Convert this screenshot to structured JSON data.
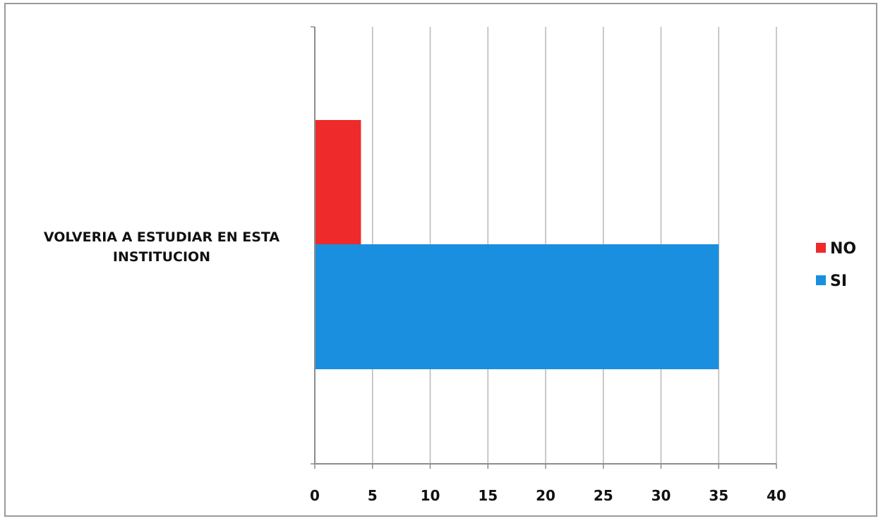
{
  "chart_data": {
    "type": "bar",
    "orientation": "horizontal",
    "categories": [
      "VOLVERIA A ESTUDIAR EN ESTA INSTITUCION"
    ],
    "category_label_lines": [
      "VOLVERIA A ESTUDIAR EN ESTA",
      "INSTITUCION"
    ],
    "series": [
      {
        "name": "SI",
        "values": [
          35
        ],
        "color": "#1a8fe0"
      },
      {
        "name": "NO",
        "values": [
          4
        ],
        "color": "#ee2a2a"
      }
    ],
    "xlim": [
      0,
      40
    ],
    "xticks": [
      0,
      5,
      10,
      15,
      20,
      25,
      30,
      35,
      40
    ],
    "grid": "vertical",
    "legend": {
      "position": "right",
      "entries": [
        "NO",
        "SI"
      ]
    },
    "title": "",
    "xlabel": "",
    "ylabel": ""
  },
  "colors": {
    "grid": "#b8b8b8",
    "axis": "#8c8c8c",
    "frame": "#9a9a9a"
  }
}
